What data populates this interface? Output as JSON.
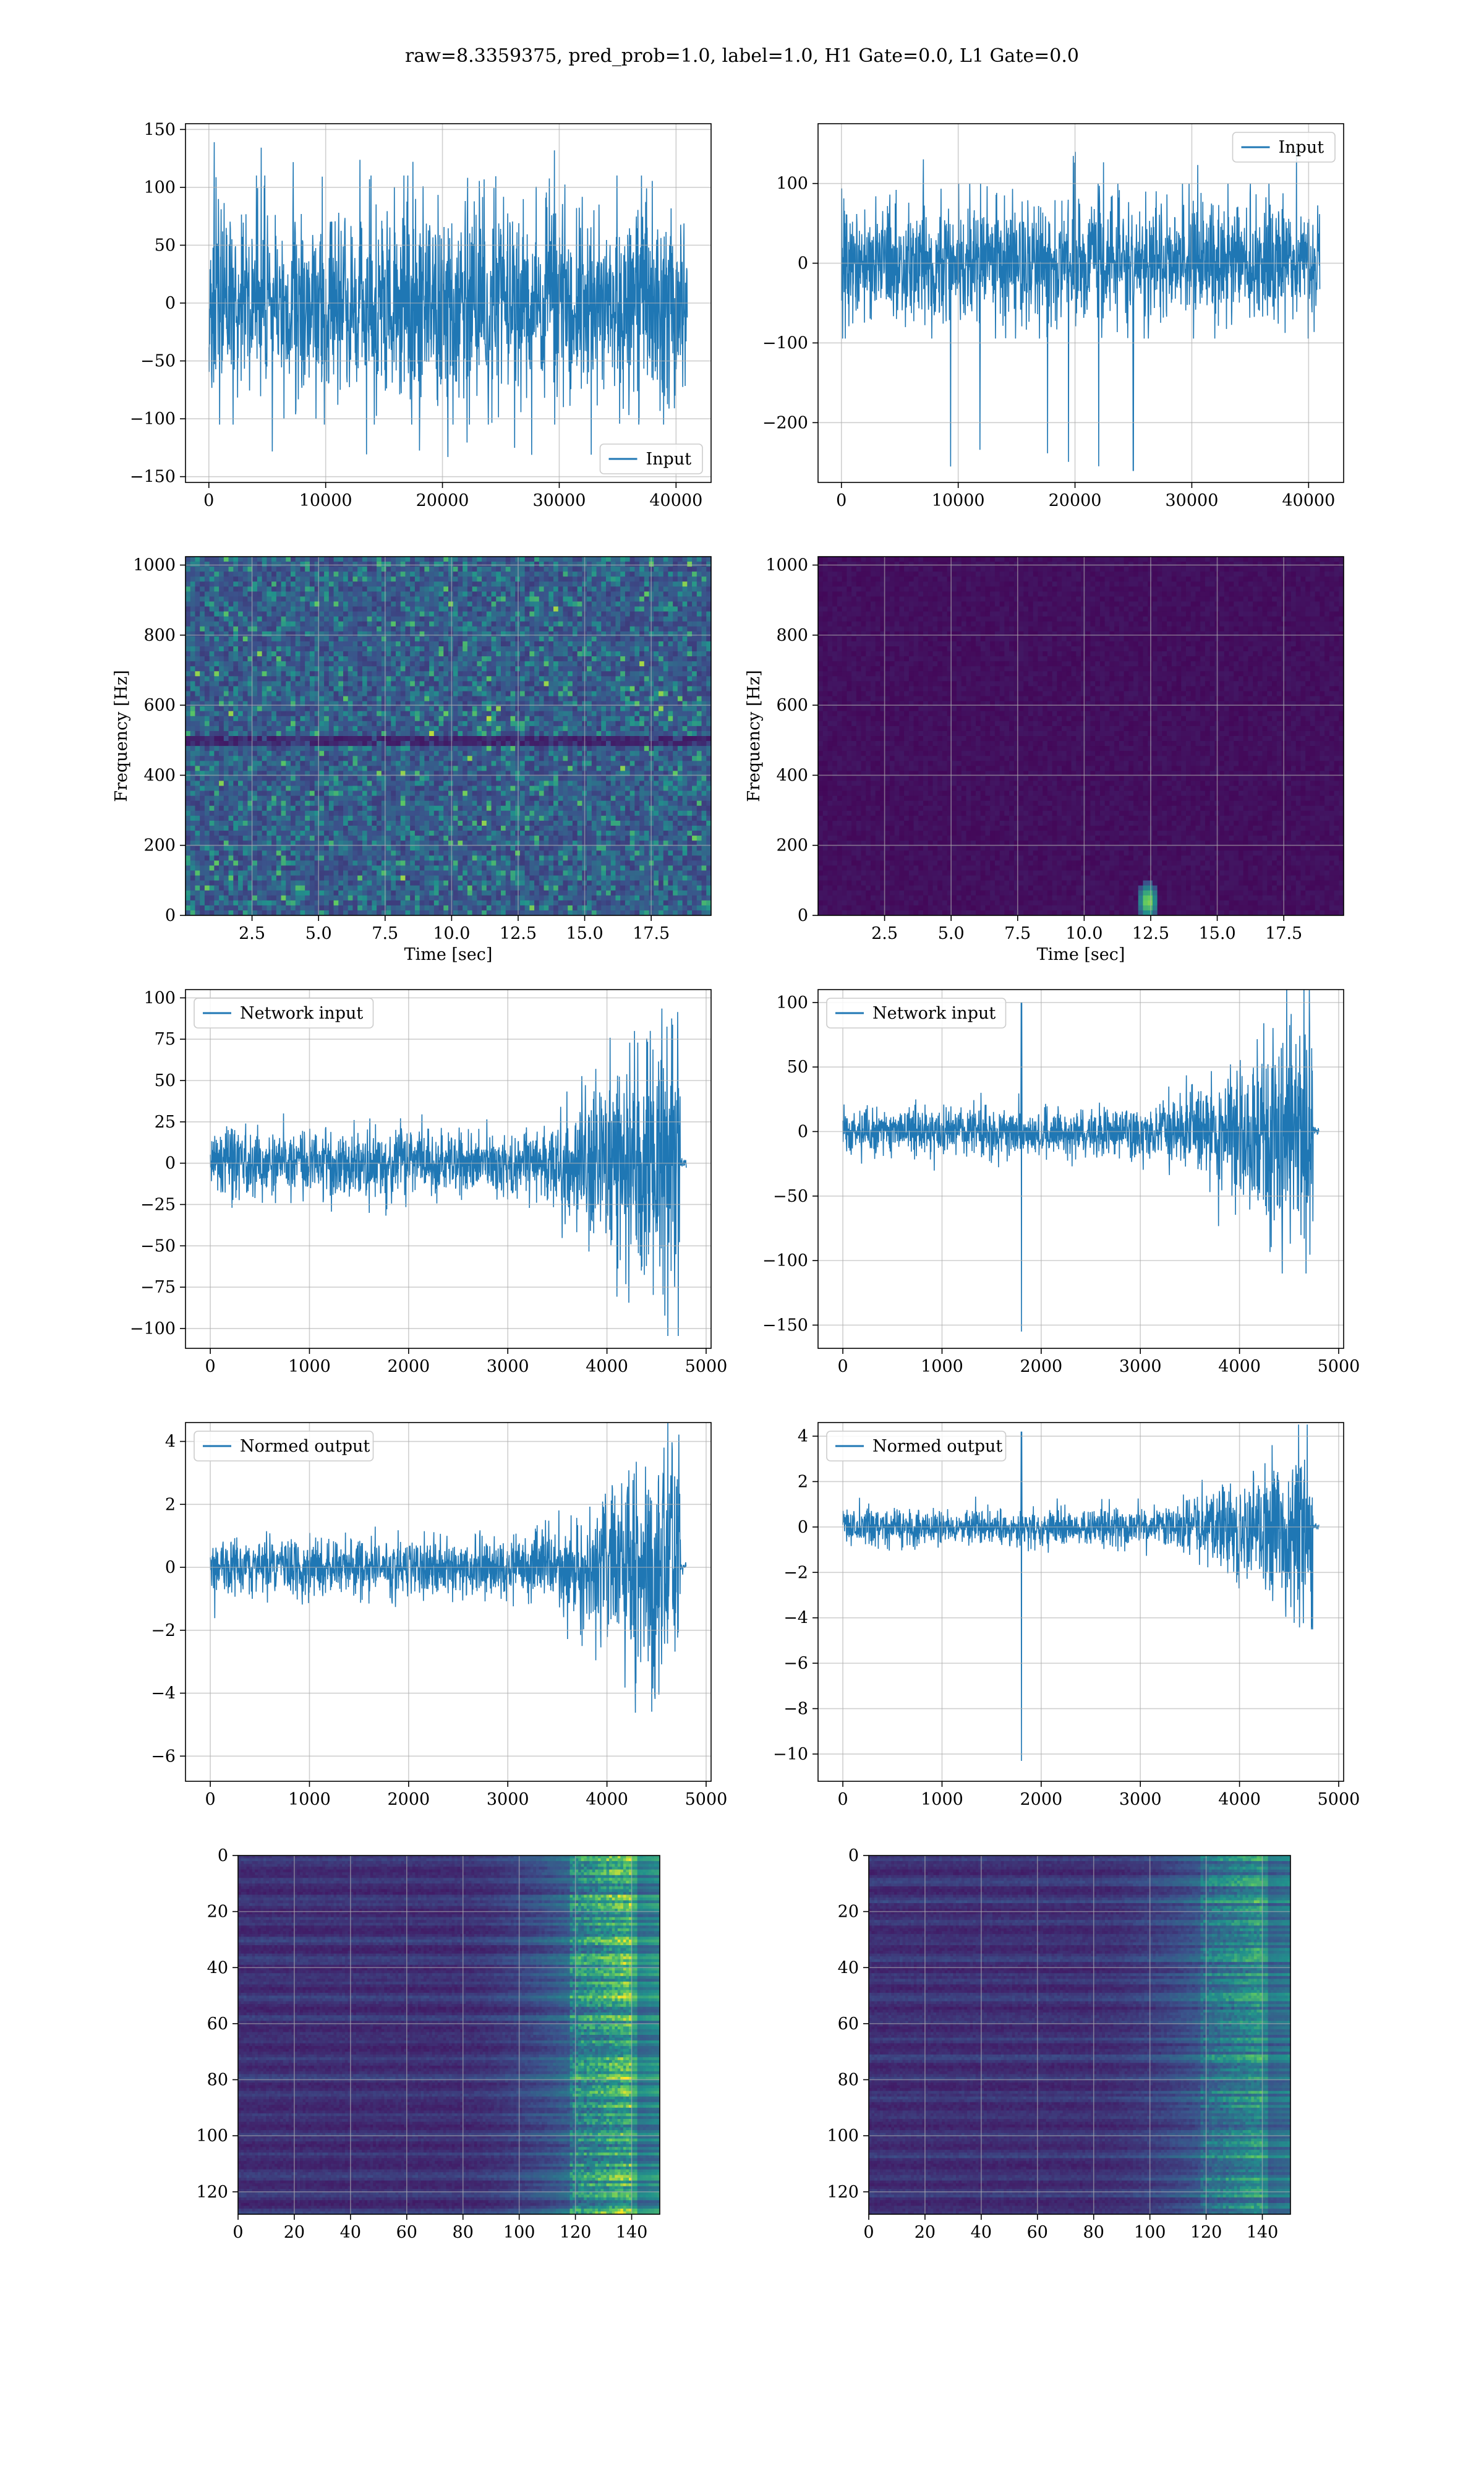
{
  "figure": {
    "title": "raw=8.3359375, pred_prob=1.0, label=1.0, H1 Gate=0.0, L1 Gate=0.0"
  },
  "colors": {
    "line": "#1f77b4",
    "grid": "#b0b0b0",
    "viridis": [
      "#440154",
      "#3b528b",
      "#21918c",
      "#5ec962",
      "#fde725"
    ]
  },
  "chart_data": [
    {
      "id": "h1-input",
      "type": "line",
      "xlim": [
        -2000,
        43000
      ],
      "ylim": [
        -155,
        155
      ],
      "xticks": [
        0,
        10000,
        20000,
        30000,
        40000
      ],
      "yticks": [
        -150,
        -100,
        -50,
        0,
        50,
        100,
        150
      ],
      "legend": "lower right",
      "series": [
        {
          "name": "Input",
          "n": 40960,
          "x_range": [
            0,
            40960
          ],
          "envelope": [
            -100,
            105
          ],
          "peak_min": -140,
          "peak_max": 145
        }
      ]
    },
    {
      "id": "l1-input",
      "type": "line",
      "xlim": [
        -2000,
        43000
      ],
      "ylim": [
        -275,
        175
      ],
      "xticks": [
        0,
        10000,
        20000,
        30000,
        40000
      ],
      "yticks": [
        -200,
        -100,
        0,
        100
      ],
      "legend": "upper right",
      "series": [
        {
          "name": "Input",
          "n": 40960,
          "x_range": [
            0,
            40960
          ],
          "envelope": [
            -90,
            95
          ],
          "peak_min": -260,
          "peak_max": 152,
          "spike_x": 25000
        }
      ]
    },
    {
      "id": "h1-spectrogram",
      "type": "heatmap",
      "xlim": [
        0,
        19.75
      ],
      "ylim": [
        0,
        1024
      ],
      "xlabel": "Time [sec]",
      "ylabel": "Frequency [Hz]",
      "xticks": [
        2.5,
        5.0,
        7.5,
        10.0,
        12.5,
        15.0,
        17.5
      ],
      "yticks": [
        0,
        200,
        400,
        600,
        800,
        1000
      ],
      "texture": "noisy"
    },
    {
      "id": "l1-spectrogram",
      "type": "heatmap",
      "xlim": [
        0,
        19.75
      ],
      "ylim": [
        0,
        1024
      ],
      "xlabel": "Time [sec]",
      "ylabel": "Frequency [Hz]",
      "xticks": [
        2.5,
        5.0,
        7.5,
        10.0,
        12.5,
        15.0,
        17.5
      ],
      "yticks": [
        0,
        200,
        400,
        600,
        800,
        1000
      ],
      "texture": "quiet",
      "hotspot": {
        "t": 12.4,
        "f": 40
      }
    },
    {
      "id": "h1-network-input",
      "type": "line",
      "xlim": [
        -250,
        5050
      ],
      "ylim": [
        -112,
        105
      ],
      "xticks": [
        0,
        1000,
        2000,
        3000,
        4000,
        5000
      ],
      "yticks": [
        -100,
        -75,
        -50,
        -25,
        0,
        25,
        50,
        75,
        100
      ],
      "legend": "upper left",
      "series": [
        {
          "name": "Network input",
          "n": 4800,
          "x_range": [
            0,
            4800
          ],
          "cutoff": 4740,
          "envelope_start": 20,
          "envelope_end": 95
        }
      ]
    },
    {
      "id": "l1-network-input",
      "type": "line",
      "xlim": [
        -250,
        5050
      ],
      "ylim": [
        -168,
        110
      ],
      "xticks": [
        0,
        1000,
        2000,
        3000,
        4000,
        5000
      ],
      "yticks": [
        -150,
        -100,
        -50,
        0,
        50,
        100
      ],
      "legend": "upper left",
      "series": [
        {
          "name": "Network input",
          "n": 4800,
          "x_range": [
            0,
            4800
          ],
          "cutoff": 4740,
          "envelope_start": 20,
          "envelope_end": 100,
          "spike_x": 1800,
          "spike_min": -155,
          "spike_max": 100
        }
      ]
    },
    {
      "id": "h1-normed-output",
      "type": "line",
      "xlim": [
        -250,
        5050
      ],
      "ylim": [
        -6.8,
        4.6
      ],
      "xticks": [
        0,
        1000,
        2000,
        3000,
        4000,
        5000
      ],
      "yticks": [
        -6,
        -4,
        -2,
        0,
        2,
        4
      ],
      "legend": "upper left",
      "series": [
        {
          "name": "Normed output",
          "n": 4800,
          "x_range": [
            0,
            4800
          ],
          "cutoff": 4740,
          "envelope_start": 0.9,
          "envelope_end": 4.2
        }
      ]
    },
    {
      "id": "l1-normed-output",
      "type": "line",
      "xlim": [
        -250,
        5050
      ],
      "ylim": [
        -11.2,
        4.6
      ],
      "xticks": [
        0,
        1000,
        2000,
        3000,
        4000,
        5000
      ],
      "yticks": [
        -10,
        -8,
        -6,
        -4,
        -2,
        0,
        2,
        4
      ],
      "legend": "upper left",
      "series": [
        {
          "name": "Normed output",
          "n": 4800,
          "x_range": [
            0,
            4800
          ],
          "cutoff": 4740,
          "envelope_start": 0.8,
          "envelope_end": 4.1,
          "spike_x": 1800,
          "spike_min": -10.3,
          "spike_max": 4.2
        }
      ]
    },
    {
      "id": "h1-feature-map",
      "type": "heatmap",
      "xlim": [
        0,
        150
      ],
      "ylim": [
        128,
        0
      ],
      "xticks": [
        0,
        20,
        40,
        60,
        80,
        100,
        120,
        140
      ],
      "yticks": [
        0,
        20,
        40,
        60,
        80,
        100,
        120
      ],
      "texture": "features-strong"
    },
    {
      "id": "l1-feature-map",
      "type": "heatmap",
      "xlim": [
        0,
        150
      ],
      "ylim": [
        128,
        0
      ],
      "xticks": [
        0,
        20,
        40,
        60,
        80,
        100,
        120,
        140
      ],
      "yticks": [
        0,
        20,
        40,
        60,
        80,
        100,
        120
      ],
      "texture": "features-soft"
    }
  ]
}
